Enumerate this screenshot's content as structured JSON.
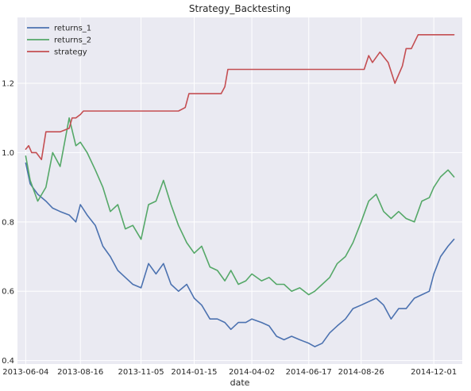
{
  "chart_data": {
    "type": "line",
    "title": "Strategy_Backtesting",
    "xlabel": "date",
    "ylabel": "",
    "grid": true,
    "legend_position": "top-left",
    "xlim": [
      "2013-05-24",
      "2015-01-08"
    ],
    "ylim": [
      0.39,
      1.39
    ],
    "x_ticks": [
      "2013-06-04",
      "2013-08-16",
      "2013-11-05",
      "2014-01-15",
      "2014-04-02",
      "2014-06-17",
      "2014-08-26",
      "2014-12-01"
    ],
    "y_ticks": [
      0.4,
      0.6,
      0.8,
      1.0,
      1.2
    ],
    "y_tick_labels": [
      "0.4",
      "0.6",
      "0.8",
      "1.0",
      "1.2"
    ],
    "series": [
      {
        "name": "returns_1",
        "color": "#4c72b0",
        "x": [
          "2013-06-04",
          "2013-06-10",
          "2013-06-20",
          "2013-07-01",
          "2013-07-10",
          "2013-07-20",
          "2013-08-01",
          "2013-08-10",
          "2013-08-16",
          "2013-08-25",
          "2013-09-05",
          "2013-09-15",
          "2013-09-25",
          "2013-10-05",
          "2013-10-15",
          "2013-10-25",
          "2013-11-05",
          "2013-11-15",
          "2013-11-25",
          "2013-12-05",
          "2013-12-15",
          "2013-12-25",
          "2014-01-05",
          "2014-01-15",
          "2014-01-25",
          "2014-02-05",
          "2014-02-15",
          "2014-02-25",
          "2014-03-05",
          "2014-03-15",
          "2014-03-25",
          "2014-04-02",
          "2014-04-15",
          "2014-04-25",
          "2014-05-05",
          "2014-05-15",
          "2014-05-25",
          "2014-06-05",
          "2014-06-17",
          "2014-06-25",
          "2014-07-05",
          "2014-07-15",
          "2014-07-25",
          "2014-08-05",
          "2014-08-15",
          "2014-08-26",
          "2014-09-05",
          "2014-09-15",
          "2014-09-25",
          "2014-10-05",
          "2014-10-15",
          "2014-10-25",
          "2014-11-05",
          "2014-11-15",
          "2014-11-25",
          "2014-12-01",
          "2014-12-10",
          "2014-12-20",
          "2014-12-28"
        ],
        "values": [
          0.97,
          0.91,
          0.88,
          0.86,
          0.84,
          0.83,
          0.82,
          0.8,
          0.85,
          0.82,
          0.79,
          0.73,
          0.7,
          0.66,
          0.64,
          0.62,
          0.61,
          0.68,
          0.65,
          0.68,
          0.62,
          0.6,
          0.62,
          0.58,
          0.56,
          0.52,
          0.52,
          0.51,
          0.49,
          0.51,
          0.51,
          0.52,
          0.51,
          0.5,
          0.47,
          0.46,
          0.47,
          0.46,
          0.45,
          0.44,
          0.45,
          0.48,
          0.5,
          0.52,
          0.55,
          0.56,
          0.57,
          0.58,
          0.56,
          0.52,
          0.55,
          0.55,
          0.58,
          0.59,
          0.6,
          0.65,
          0.7,
          0.73,
          0.75
        ]
      },
      {
        "name": "returns_2",
        "color": "#55a868",
        "x": [
          "2013-06-04",
          "2013-06-10",
          "2013-06-20",
          "2013-07-01",
          "2013-07-10",
          "2013-07-20",
          "2013-08-01",
          "2013-08-10",
          "2013-08-16",
          "2013-08-25",
          "2013-09-05",
          "2013-09-15",
          "2013-09-25",
          "2013-10-05",
          "2013-10-15",
          "2013-10-25",
          "2013-11-05",
          "2013-11-15",
          "2013-11-25",
          "2013-12-05",
          "2013-12-15",
          "2013-12-25",
          "2014-01-05",
          "2014-01-15",
          "2014-01-25",
          "2014-02-05",
          "2014-02-15",
          "2014-02-25",
          "2014-03-05",
          "2014-03-15",
          "2014-03-25",
          "2014-04-02",
          "2014-04-15",
          "2014-04-25",
          "2014-05-05",
          "2014-05-15",
          "2014-05-25",
          "2014-06-05",
          "2014-06-17",
          "2014-06-25",
          "2014-07-05",
          "2014-07-15",
          "2014-07-25",
          "2014-08-05",
          "2014-08-15",
          "2014-08-26",
          "2014-09-05",
          "2014-09-15",
          "2014-09-25",
          "2014-10-05",
          "2014-10-15",
          "2014-10-25",
          "2014-11-05",
          "2014-11-15",
          "2014-11-25",
          "2014-12-01",
          "2014-12-10",
          "2014-12-20",
          "2014-12-28"
        ],
        "values": [
          0.99,
          0.92,
          0.86,
          0.9,
          1.0,
          0.96,
          1.1,
          1.02,
          1.03,
          1.0,
          0.95,
          0.9,
          0.83,
          0.85,
          0.78,
          0.79,
          0.75,
          0.85,
          0.86,
          0.92,
          0.85,
          0.79,
          0.74,
          0.71,
          0.73,
          0.67,
          0.66,
          0.63,
          0.66,
          0.62,
          0.63,
          0.65,
          0.63,
          0.64,
          0.62,
          0.62,
          0.6,
          0.61,
          0.59,
          0.6,
          0.62,
          0.64,
          0.68,
          0.7,
          0.74,
          0.8,
          0.86,
          0.88,
          0.83,
          0.81,
          0.83,
          0.81,
          0.8,
          0.86,
          0.87,
          0.9,
          0.93,
          0.95,
          0.93
        ]
      },
      {
        "name": "strategy",
        "color": "#c44e52",
        "x": [
          "2013-06-04",
          "2013-06-08",
          "2013-06-12",
          "2013-06-18",
          "2013-06-25",
          "2013-07-01",
          "2013-07-05",
          "2013-07-20",
          "2013-08-01",
          "2013-08-05",
          "2013-08-10",
          "2013-08-16",
          "2013-08-20",
          "2013-08-25",
          "2013-09-05",
          "2013-09-15",
          "2013-10-01",
          "2013-11-05",
          "2013-12-01",
          "2013-12-20",
          "2013-12-25",
          "2014-01-03",
          "2014-01-08",
          "2014-01-15",
          "2014-02-01",
          "2014-02-20",
          "2014-02-25",
          "2014-03-01",
          "2014-03-15",
          "2014-04-02",
          "2014-05-01",
          "2014-06-17",
          "2014-07-15",
          "2014-08-10",
          "2014-08-26",
          "2014-08-30",
          "2014-09-05",
          "2014-09-10",
          "2014-09-20",
          "2014-10-01",
          "2014-10-10",
          "2014-10-20",
          "2014-10-25",
          "2014-11-01",
          "2014-11-10",
          "2014-12-01",
          "2014-12-28"
        ],
        "values": [
          1.01,
          1.02,
          1.0,
          1.0,
          0.98,
          1.06,
          1.06,
          1.06,
          1.07,
          1.1,
          1.1,
          1.11,
          1.12,
          1.12,
          1.12,
          1.12,
          1.12,
          1.12,
          1.12,
          1.12,
          1.12,
          1.13,
          1.17,
          1.17,
          1.17,
          1.17,
          1.19,
          1.24,
          1.24,
          1.24,
          1.24,
          1.24,
          1.24,
          1.24,
          1.24,
          1.24,
          1.28,
          1.26,
          1.29,
          1.26,
          1.2,
          1.25,
          1.3,
          1.3,
          1.34,
          1.34,
          1.34
        ]
      }
    ]
  }
}
